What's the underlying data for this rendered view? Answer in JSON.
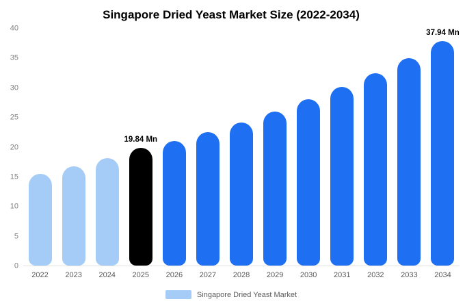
{
  "chart_data": {
    "type": "bar",
    "title": "Singapore Dried Yeast Market Size (2022-2034)",
    "xlabel": "",
    "ylabel": "",
    "unit": "Mn",
    "categories": [
      "2022",
      "2023",
      "2024",
      "2025",
      "2026",
      "2027",
      "2028",
      "2029",
      "2030",
      "2031",
      "2032",
      "2033",
      "2034"
    ],
    "values": [
      15.5,
      16.8,
      18.1,
      19.84,
      21.0,
      22.6,
      24.2,
      26.0,
      28.1,
      30.2,
      32.5,
      35.0,
      37.94
    ],
    "bar_colors": [
      "#a4ccf6",
      "#a4ccf6",
      "#a4ccf6",
      "#000000",
      "#1e6ff2",
      "#1e6ff2",
      "#1e6ff2",
      "#1e6ff2",
      "#1e6ff2",
      "#1e6ff2",
      "#1e6ff2",
      "#1e6ff2",
      "#1e6ff2"
    ],
    "ylim": [
      0,
      40
    ],
    "yticks": [
      0,
      5,
      10,
      15,
      20,
      25,
      30,
      35,
      40
    ],
    "grid": false,
    "legend_position": "bottom",
    "annotations": [
      {
        "index": 3,
        "text": "19.84 Mn"
      },
      {
        "index": 12,
        "text": "37.94 Mn"
      }
    ]
  },
  "legend": {
    "label": "Singapore Dried Yeast Market",
    "swatch_color": "#a4ccf6"
  },
  "colors": {
    "historical_bar": "#a4ccf6",
    "highlight_bar": "#000000",
    "forecast_bar": "#1e6ff2",
    "axis_text": "#7f7f7f",
    "category_text": "#595959"
  }
}
